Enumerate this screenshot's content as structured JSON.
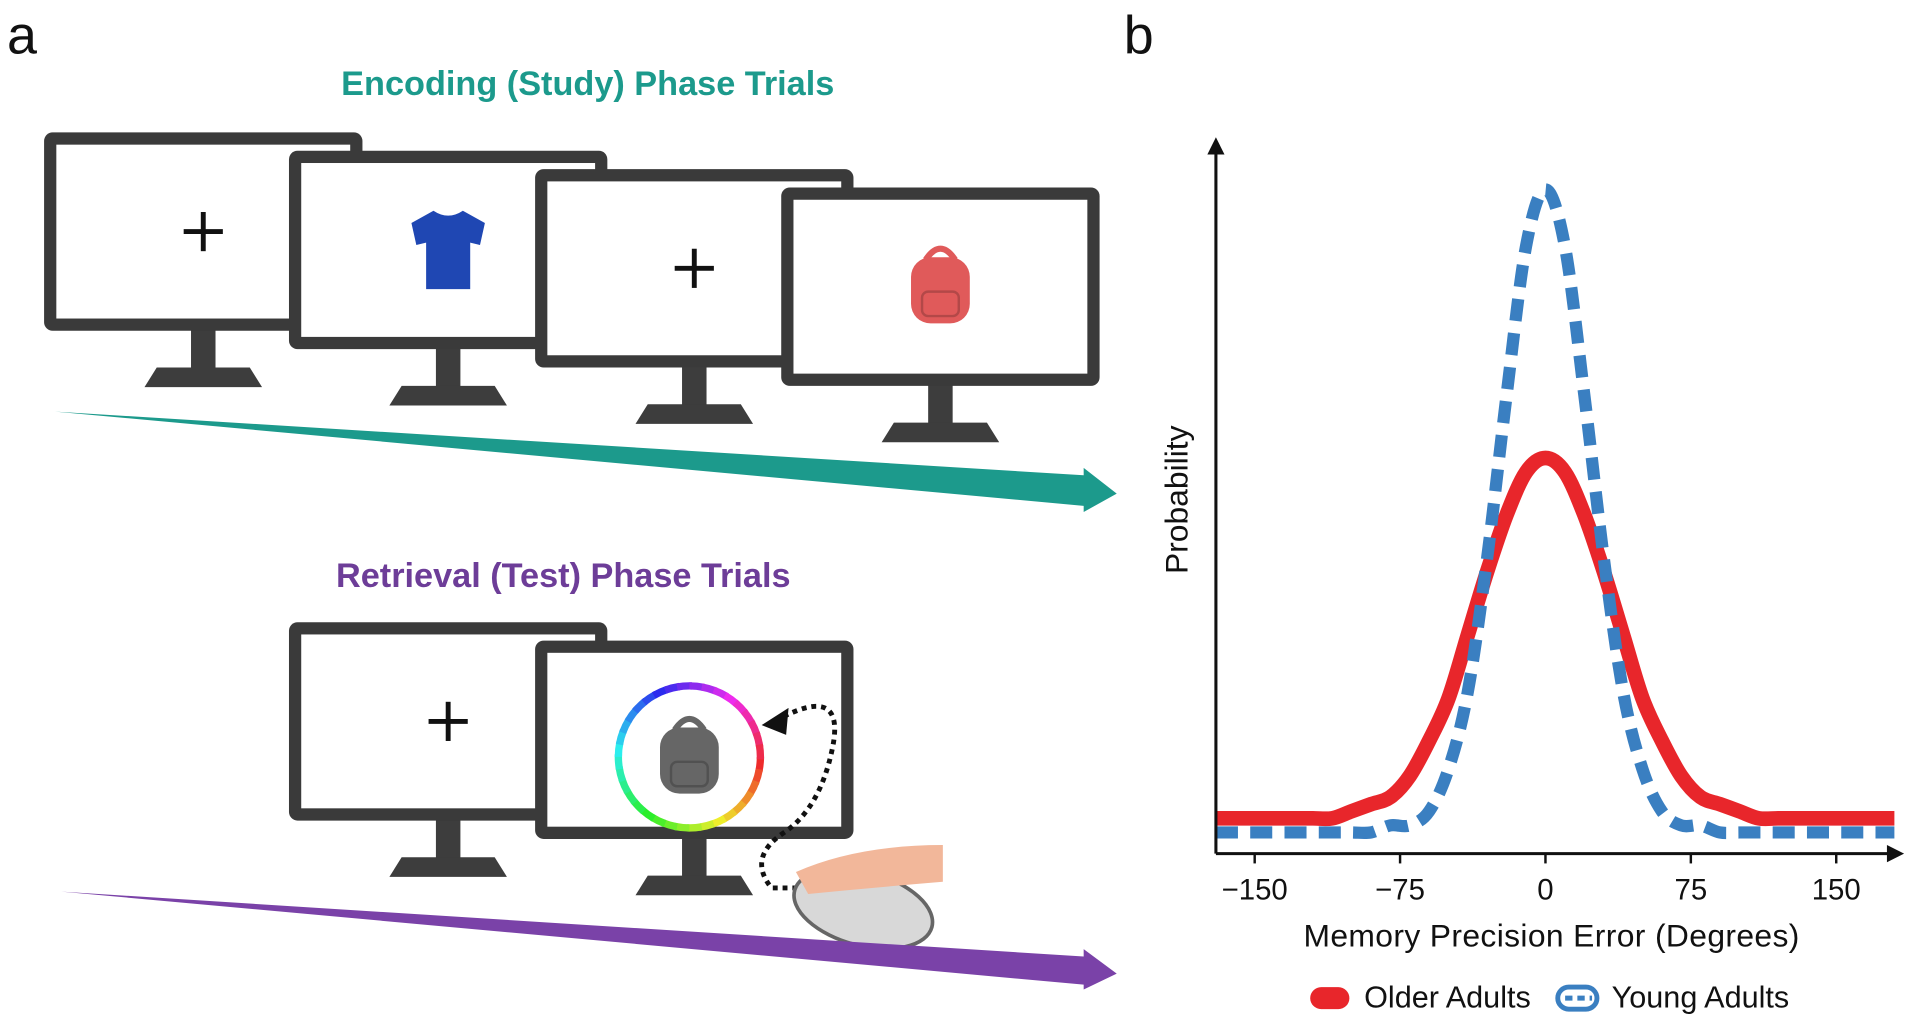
{
  "diagram": {
    "panel_label": "a",
    "encoding_title": "Encoding (Study) Phase Trials",
    "retrieval_title": "Retrieval (Test) Phase Trials"
  },
  "chart_data": {
    "type": "line",
    "panel_label": "b",
    "xlabel": "Memory Precision Error (Degrees)",
    "ylabel": "Probability",
    "x": [
      -170,
      -160,
      -150,
      -140,
      -130,
      -120,
      -110,
      -100,
      -90,
      -80,
      -70,
      -60,
      -50,
      -40,
      -30,
      -20,
      -10,
      0,
      10,
      20,
      30,
      40,
      50,
      60,
      70,
      80,
      90,
      100,
      110,
      120,
      130,
      140,
      150,
      160,
      170,
      180
    ],
    "series": [
      {
        "name": "Older Adults",
        "color": "#e8262b",
        "style": "solid",
        "values": [
          0.05,
          0.05,
          0.05,
          0.05,
          0.05,
          0.05,
          0.05,
          0.06,
          0.07,
          0.08,
          0.11,
          0.16,
          0.22,
          0.31,
          0.4,
          0.48,
          0.54,
          0.56,
          0.54,
          0.48,
          0.4,
          0.31,
          0.22,
          0.16,
          0.11,
          0.08,
          0.07,
          0.06,
          0.05,
          0.05,
          0.05,
          0.05,
          0.05,
          0.05,
          0.05,
          0.05
        ]
      },
      {
        "name": "Young Adults",
        "color": "#3a7fc1",
        "style": "dashed",
        "values": [
          0.03,
          0.03,
          0.03,
          0.03,
          0.03,
          0.03,
          0.03,
          0.03,
          0.03,
          0.04,
          0.04,
          0.06,
          0.12,
          0.23,
          0.42,
          0.65,
          0.86,
          0.94,
          0.86,
          0.65,
          0.42,
          0.23,
          0.12,
          0.06,
          0.04,
          0.04,
          0.03,
          0.03,
          0.03,
          0.03,
          0.03,
          0.03,
          0.03,
          0.03,
          0.03,
          0.03
        ]
      }
    ],
    "xlim": [
      -170,
      185
    ],
    "xticks": [
      {
        "value": -150,
        "label": "−150"
      },
      {
        "value": -75,
        "label": "−75"
      },
      0,
      75,
      150
    ],
    "ylim": [
      0,
      1
    ],
    "legend": "bottom"
  }
}
